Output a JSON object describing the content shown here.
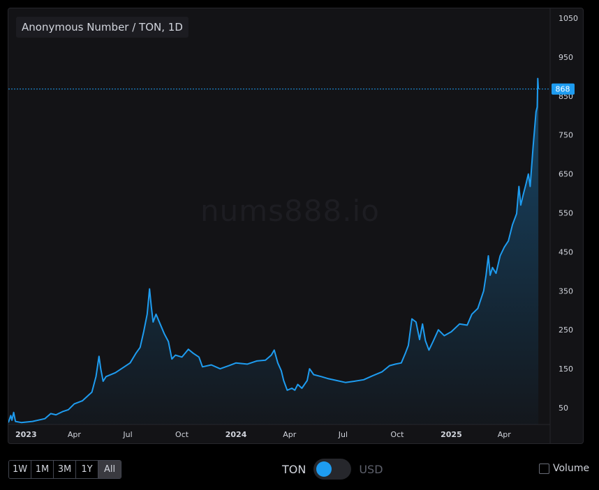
{
  "chart": {
    "legend_title": "Anonymous Number / TON, 1D",
    "watermark": "nums888.io"
  },
  "chart_data": {
    "type": "area",
    "x_tick_labels": [
      {
        "date": "2023-01-01",
        "label": "2023",
        "bold": true
      },
      {
        "date": "2023-04-01",
        "label": "Apr"
      },
      {
        "date": "2023-07-01",
        "label": "Jul"
      },
      {
        "date": "2023-10-01",
        "label": "Oct"
      },
      {
        "date": "2024-01-01",
        "label": "2024",
        "bold": true
      },
      {
        "date": "2024-04-01",
        "label": "Apr"
      },
      {
        "date": "2024-07-01",
        "label": "Jul"
      },
      {
        "date": "2024-10-01",
        "label": "Oct"
      },
      {
        "date": "2025-01-01",
        "label": "2025",
        "bold": true
      },
      {
        "date": "2025-04-01",
        "label": "Apr"
      }
    ],
    "y_ticks": [
      50,
      150,
      250,
      350,
      450,
      550,
      650,
      750,
      850,
      950,
      1050
    ],
    "ylim": [
      0,
      1050
    ],
    "xlim": [
      "2022-12-10",
      "2025-06-18"
    ],
    "last_price": 868,
    "colors": {
      "line": "#1e9cf0",
      "price_label_bg": "#1e9cf0",
      "grid": "none"
    },
    "series": [
      {
        "points": [
          [
            "2022-12-10",
            12
          ],
          [
            "2022-12-14",
            30
          ],
          [
            "2022-12-16",
            18
          ],
          [
            "2022-12-19",
            38
          ],
          [
            "2022-12-22",
            15
          ],
          [
            "2023-01-01",
            12
          ],
          [
            "2023-01-20",
            15
          ],
          [
            "2023-02-10",
            22
          ],
          [
            "2023-02-20",
            35
          ],
          [
            "2023-03-01",
            32
          ],
          [
            "2023-03-12",
            40
          ],
          [
            "2023-03-22",
            45
          ],
          [
            "2023-04-01",
            60
          ],
          [
            "2023-04-15",
            68
          ],
          [
            "2023-05-01",
            90
          ],
          [
            "2023-05-08",
            130
          ],
          [
            "2023-05-13",
            182
          ],
          [
            "2023-05-16",
            150
          ],
          [
            "2023-05-20",
            118
          ],
          [
            "2023-05-25",
            130
          ],
          [
            "2023-06-10",
            140
          ],
          [
            "2023-06-25",
            155
          ],
          [
            "2023-07-05",
            165
          ],
          [
            "2023-07-15",
            190
          ],
          [
            "2023-07-22",
            205
          ],
          [
            "2023-07-28",
            245
          ],
          [
            "2023-08-03",
            290
          ],
          [
            "2023-08-07",
            355
          ],
          [
            "2023-08-10",
            310
          ],
          [
            "2023-08-13",
            270
          ],
          [
            "2023-08-18",
            290
          ],
          [
            "2023-08-25",
            265
          ],
          [
            "2023-09-01",
            240
          ],
          [
            "2023-09-08",
            220
          ],
          [
            "2023-09-14",
            175
          ],
          [
            "2023-09-20",
            185
          ],
          [
            "2023-10-01",
            180
          ],
          [
            "2023-10-12",
            200
          ],
          [
            "2023-10-20",
            190
          ],
          [
            "2023-10-30",
            180
          ],
          [
            "2023-11-05",
            155
          ],
          [
            "2023-11-20",
            160
          ],
          [
            "2023-12-05",
            150
          ],
          [
            "2023-12-20",
            158
          ],
          [
            "2024-01-01",
            165
          ],
          [
            "2024-01-20",
            162
          ],
          [
            "2024-02-05",
            170
          ],
          [
            "2024-02-20",
            172
          ],
          [
            "2024-03-01",
            185
          ],
          [
            "2024-03-06",
            198
          ],
          [
            "2024-03-12",
            165
          ],
          [
            "2024-03-18",
            145
          ],
          [
            "2024-03-22",
            120
          ],
          [
            "2024-03-28",
            95
          ],
          [
            "2024-04-05",
            100
          ],
          [
            "2024-04-10",
            95
          ],
          [
            "2024-04-15",
            110
          ],
          [
            "2024-04-22",
            100
          ],
          [
            "2024-05-01",
            120
          ],
          [
            "2024-05-05",
            150
          ],
          [
            "2024-05-12",
            135
          ],
          [
            "2024-05-25",
            130
          ],
          [
            "2024-06-05",
            125
          ],
          [
            "2024-06-20",
            120
          ],
          [
            "2024-07-05",
            115
          ],
          [
            "2024-07-20",
            118
          ],
          [
            "2024-08-05",
            122
          ],
          [
            "2024-08-20",
            132
          ],
          [
            "2024-09-05",
            142
          ],
          [
            "2024-09-18",
            158
          ],
          [
            "2024-09-28",
            162
          ],
          [
            "2024-10-08",
            165
          ],
          [
            "2024-10-15",
            190
          ],
          [
            "2024-10-20",
            210
          ],
          [
            "2024-10-26",
            278
          ],
          [
            "2024-11-02",
            270
          ],
          [
            "2024-11-08",
            225
          ],
          [
            "2024-11-13",
            265
          ],
          [
            "2024-11-18",
            222
          ],
          [
            "2024-11-24",
            198
          ],
          [
            "2024-12-01",
            220
          ],
          [
            "2024-12-10",
            250
          ],
          [
            "2024-12-20",
            235
          ],
          [
            "2025-01-01",
            245
          ],
          [
            "2025-01-15",
            265
          ],
          [
            "2025-01-28",
            262
          ],
          [
            "2025-02-05",
            290
          ],
          [
            "2025-02-15",
            305
          ],
          [
            "2025-02-25",
            350
          ],
          [
            "2025-03-01",
            390
          ],
          [
            "2025-03-05",
            440
          ],
          [
            "2025-03-08",
            390
          ],
          [
            "2025-03-12",
            410
          ],
          [
            "2025-03-18",
            395
          ],
          [
            "2025-03-25",
            440
          ],
          [
            "2025-04-01",
            462
          ],
          [
            "2025-04-08",
            478
          ],
          [
            "2025-04-15",
            520
          ],
          [
            "2025-04-22",
            548
          ],
          [
            "2025-04-26",
            618
          ],
          [
            "2025-04-29",
            570
          ],
          [
            "2025-05-03",
            595
          ],
          [
            "2025-05-08",
            625
          ],
          [
            "2025-05-12",
            650
          ],
          [
            "2025-05-15",
            618
          ],
          [
            "2025-05-20",
            720
          ],
          [
            "2025-05-25",
            810
          ],
          [
            "2025-05-27",
            822
          ],
          [
            "2025-05-28",
            895
          ],
          [
            "2025-05-29",
            868
          ]
        ]
      }
    ]
  },
  "range_buttons": [
    {
      "label": "1W",
      "active": false
    },
    {
      "label": "1M",
      "active": false
    },
    {
      "label": "3M",
      "active": false
    },
    {
      "label": "1Y",
      "active": false
    },
    {
      "label": "All",
      "active": true
    }
  ],
  "currency_toggle": {
    "left": "TON",
    "right": "USD",
    "selected": "TON"
  },
  "volume_toggle": {
    "label": "Volume",
    "checked": false
  }
}
